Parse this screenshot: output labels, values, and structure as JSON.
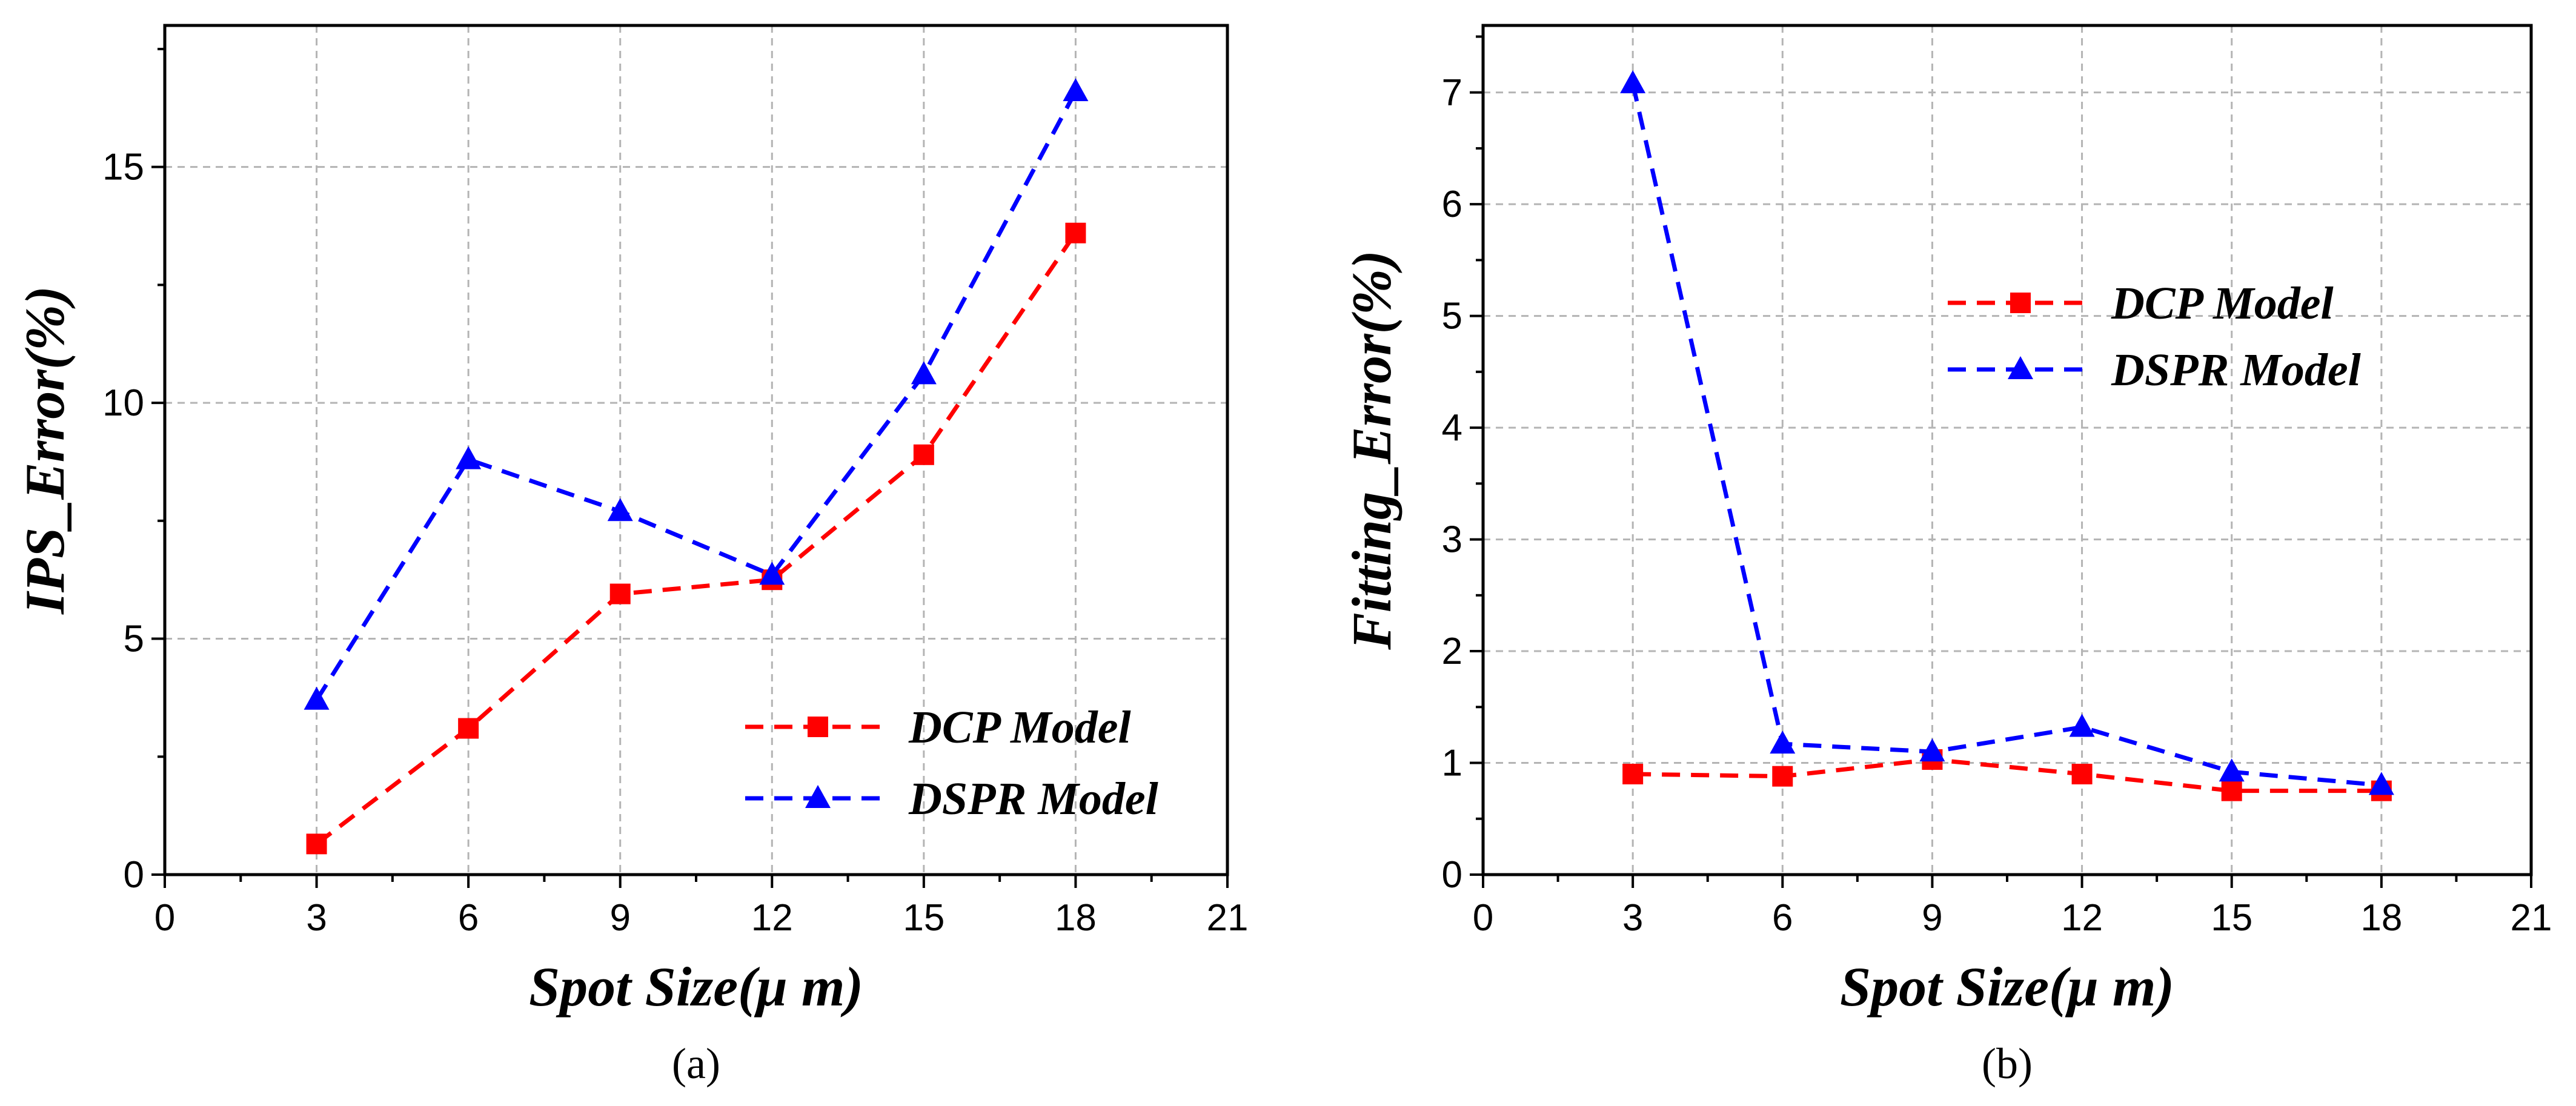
{
  "chart_data": [
    {
      "type": "line",
      "panel_label": "(a)",
      "xlabel": "Spot Size(μ m)",
      "ylabel": "IPS_Error(%)",
      "xlim": [
        0,
        21
      ],
      "ylim": [
        0,
        18
      ],
      "xticks": [
        0,
        3,
        6,
        9,
        12,
        15,
        18,
        21
      ],
      "yticks": [
        0,
        5,
        10,
        15
      ],
      "grid": true,
      "legend_position": "lower-right",
      "x": [
        3,
        6,
        9,
        12,
        15,
        18
      ],
      "series": [
        {
          "name": "DCP Model",
          "color": "#ff0000",
          "marker": "square",
          "values": [
            0.65,
            3.1,
            5.95,
            6.25,
            8.9,
            13.6
          ]
        },
        {
          "name": "DSPR Model",
          "color": "#0000ff",
          "marker": "triangle",
          "values": [
            3.7,
            8.8,
            7.7,
            6.35,
            10.6,
            16.6
          ]
        }
      ]
    },
    {
      "type": "line",
      "panel_label": "(b)",
      "xlabel": "Spot Size(μ m)",
      "ylabel": "Fitting_Error(%)",
      "xlim": [
        0,
        21
      ],
      "ylim": [
        0,
        7.6
      ],
      "xticks": [
        0,
        3,
        6,
        9,
        12,
        15,
        18,
        21
      ],
      "yticks": [
        0,
        1,
        2,
        3,
        4,
        5,
        6,
        7
      ],
      "grid": true,
      "legend_position": "upper-center",
      "x": [
        3,
        6,
        9,
        12,
        15,
        18
      ],
      "series": [
        {
          "name": "DCP Model",
          "color": "#ff0000",
          "marker": "square",
          "values": [
            0.9,
            0.88,
            1.03,
            0.9,
            0.75,
            0.75
          ]
        },
        {
          "name": "DSPR Model",
          "color": "#0000ff",
          "marker": "triangle",
          "values": [
            7.08,
            1.17,
            1.1,
            1.32,
            0.92,
            0.8
          ]
        }
      ]
    }
  ]
}
